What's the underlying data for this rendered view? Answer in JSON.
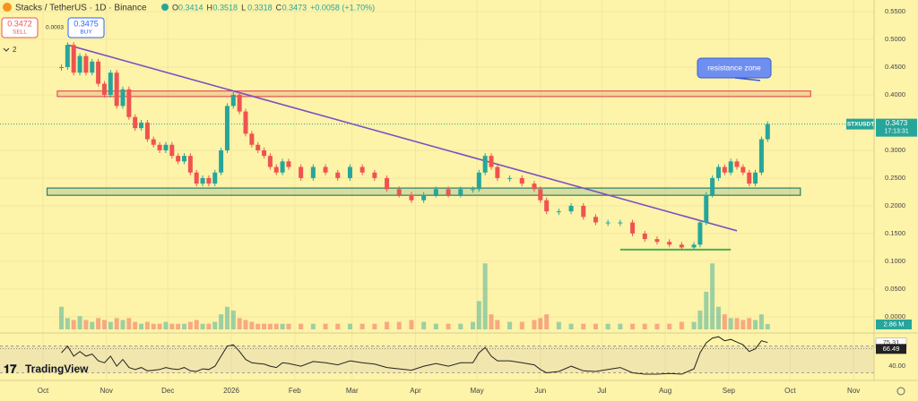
{
  "chart_data": {
    "type": "candlestick",
    "title": "Stacks / TetherUS · 1D · Binance",
    "ohlc_legend": [
      {
        "label": "O",
        "value": 0.3414
      },
      {
        "label": "H",
        "value": 0.3518
      },
      {
        "label": "L",
        "value": 0.3318
      },
      {
        "label": "C",
        "value": 0.3473
      }
    ],
    "change": "+0.0058 (+1.70%)",
    "sell": {
      "price": 0.3472,
      "label": "SELL"
    },
    "buy": {
      "price": 0.3475,
      "label": "BUY"
    },
    "spread": 0.0003,
    "indicator_count": 2,
    "symbol": "STXUSDT",
    "last_price": 0.3473,
    "countdown": "17:13:31",
    "annotation": "resistance zone",
    "brand": "TradingView",
    "xlim": [
      -21,
      406
    ],
    "xticks": [
      {
        "value": 0,
        "label": "Oct"
      },
      {
        "value": 31,
        "label": "Nov"
      },
      {
        "value": 61,
        "label": "Dec"
      },
      {
        "value": 92,
        "label": "2026"
      },
      {
        "value": 123,
        "label": "Feb"
      },
      {
        "value": 151,
        "label": "Mar"
      },
      {
        "value": 182,
        "label": "Apr"
      },
      {
        "value": 212,
        "label": "May"
      },
      {
        "value": 243,
        "label": "Jun"
      },
      {
        "value": 273,
        "label": "Jul"
      },
      {
        "value": 304,
        "label": "Aug"
      },
      {
        "value": 335,
        "label": "Sep"
      },
      {
        "value": 365,
        "label": "Oct"
      },
      {
        "value": 396,
        "label": "Nov"
      }
    ],
    "ylim": [
      -0.026,
      0.571
    ],
    "yticks": [
      {
        "value": 0.55,
        "label": "0.5500"
      },
      {
        "value": 0.5,
        "label": "0.5000"
      },
      {
        "value": 0.45,
        "label": "0.4500"
      },
      {
        "value": 0.4,
        "label": "0.4000"
      },
      {
        "value": 0.3,
        "label": "0.3000"
      },
      {
        "value": 0.25,
        "label": "0.2500"
      },
      {
        "value": 0.2,
        "label": "0.2000"
      },
      {
        "value": 0.15,
        "label": "0.1500"
      },
      {
        "value": 0.1,
        "label": "0.1000"
      },
      {
        "value": 0.05,
        "label": "0.0500"
      },
      {
        "value": 0,
        "label": "0.0000"
      }
    ],
    "x": [
      9,
      12,
      15,
      18,
      21,
      24,
      27,
      30,
      33,
      36,
      39,
      42,
      45,
      48,
      51,
      54,
      57,
      60,
      63,
      66,
      69,
      72,
      75,
      78,
      81,
      84,
      87,
      90,
      93,
      96,
      99,
      102,
      105,
      108,
      111,
      114,
      117,
      120,
      126,
      132,
      138,
      144,
      150,
      156,
      162,
      168,
      174,
      180,
      186,
      192,
      198,
      204,
      210,
      213,
      216,
      219,
      222,
      228,
      234,
      240,
      243,
      246,
      252,
      258,
      264,
      270,
      276,
      282,
      288,
      294,
      300,
      306,
      312,
      318,
      321,
      324,
      327,
      330,
      333,
      336,
      339,
      342,
      345,
      348,
      351,
      354
    ],
    "close": [
      0.45,
      0.49,
      0.44,
      0.47,
      0.44,
      0.46,
      0.42,
      0.4,
      0.44,
      0.38,
      0.41,
      0.36,
      0.34,
      0.35,
      0.32,
      0.31,
      0.3,
      0.31,
      0.29,
      0.28,
      0.29,
      0.26,
      0.24,
      0.25,
      0.24,
      0.26,
      0.3,
      0.38,
      0.4,
      0.37,
      0.33,
      0.31,
      0.3,
      0.29,
      0.27,
      0.26,
      0.28,
      0.27,
      0.25,
      0.27,
      0.26,
      0.25,
      0.27,
      0.26,
      0.25,
      0.23,
      0.22,
      0.21,
      0.22,
      0.23,
      0.22,
      0.23,
      0.23,
      0.26,
      0.29,
      0.27,
      0.25,
      0.25,
      0.24,
      0.23,
      0.21,
      0.19,
      0.19,
      0.2,
      0.18,
      0.17,
      0.17,
      0.17,
      0.15,
      0.14,
      0.135,
      0.13,
      0.125,
      0.13,
      0.17,
      0.22,
      0.25,
      0.27,
      0.26,
      0.28,
      0.27,
      0.26,
      0.24,
      0.26,
      0.32,
      0.3473
    ],
    "up_color": "#26a69a",
    "down_color": "#ef5350",
    "volume_label": "2.86 M",
    "volume_ylim": [
      0,
      170
    ],
    "volume": [
      12,
      6,
      5,
      7,
      5,
      4,
      6,
      5,
      4,
      6,
      5,
      6,
      4,
      3,
      4,
      3,
      3,
      4,
      3,
      3,
      3,
      4,
      5,
      3,
      3,
      4,
      8,
      12,
      10,
      6,
      5,
      4,
      3,
      3,
      3,
      3,
      3,
      3,
      3,
      3,
      3,
      3,
      3,
      3,
      3,
      4,
      4,
      5,
      4,
      3,
      3,
      3,
      4,
      15,
      35,
      8,
      5,
      4,
      4,
      5,
      6,
      8,
      4,
      3,
      3,
      3,
      3,
      3,
      3,
      3,
      3,
      3,
      4,
      4,
      10,
      20,
      35,
      12,
      8,
      6,
      6,
      5,
      6,
      5,
      8,
      2.86
    ],
    "rsi_ylim": [
      20,
      87
    ],
    "rsi_levels": [
      70,
      30
    ],
    "rsi_ticks": [
      {
        "value": 40,
        "label": "40.00"
      }
    ],
    "rsi": [
      60,
      70,
      55,
      62,
      55,
      58,
      48,
      45,
      55,
      40,
      50,
      38,
      35,
      38,
      33,
      34,
      35,
      38,
      36,
      35,
      38,
      33,
      32,
      36,
      35,
      40,
      55,
      70,
      72,
      62,
      50,
      45,
      44,
      43,
      40,
      38,
      45,
      44,
      40,
      47,
      45,
      42,
      48,
      45,
      43,
      38,
      36,
      34,
      40,
      44,
      40,
      45,
      45,
      60,
      68,
      55,
      48,
      48,
      45,
      42,
      35,
      30,
      32,
      40,
      33,
      32,
      35,
      38,
      30,
      28,
      28,
      29,
      28,
      36,
      60,
      75,
      82,
      84,
      78,
      80,
      76,
      72,
      62,
      66,
      78,
      75.31
    ],
    "rsi_ma": 66.49,
    "trend_line": {
      "x": [
        12,
        339
      ],
      "y": [
        0.49,
        0.155
      ],
      "color": "#7b4fc4"
    },
    "zones": [
      {
        "x": [
          7,
          375
        ],
        "y": [
          0.397,
          0.407
        ],
        "color": "#e05555"
      },
      {
        "x": [
          2,
          370
        ],
        "y": [
          0.219,
          0.232
        ],
        "color": "#2e7d6b"
      }
    ],
    "support_line": {
      "x": [
        282,
        336
      ],
      "y": 0.121,
      "color": "#4caf50"
    }
  }
}
